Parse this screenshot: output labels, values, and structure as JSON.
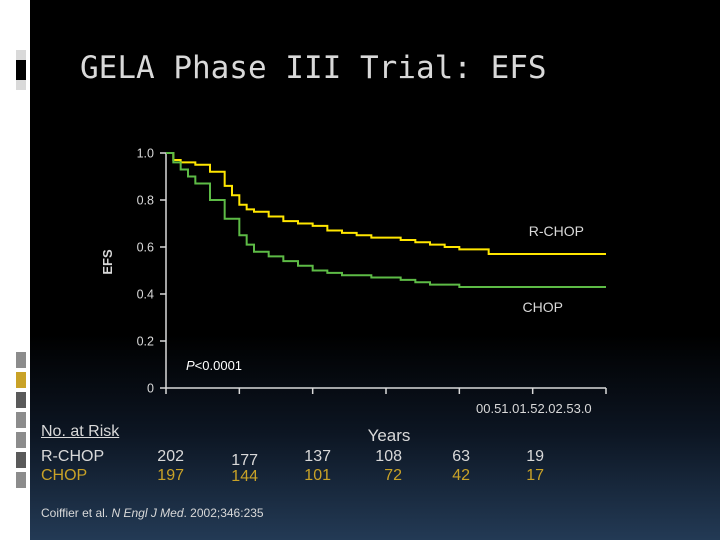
{
  "slide": {
    "title": "GELA Phase III Trial: EFS",
    "citation_prefix": "Coiffier et al. ",
    "citation_journal": "N Engl J Med",
    "citation_suffix": ". 2002;346:235"
  },
  "colors": {
    "rchop": "#ffe600",
    "chop": "#5dbb46",
    "text": "#d9d9d9",
    "background": "#000000"
  },
  "risk_table": {
    "header": "No. at Risk",
    "rows": [
      {
        "label": "R-CHOP",
        "values": [
          "202",
          "177",
          "137",
          "108",
          "63",
          "19"
        ]
      },
      {
        "label": "CHOP",
        "values": [
          "197",
          "144",
          "101",
          "72",
          "42",
          "17"
        ]
      }
    ]
  },
  "chart_data": {
    "type": "line",
    "ylabel": "EFS",
    "xlabel": "Years",
    "ylim": [
      0,
      1.0
    ],
    "xlim": [
      0,
      3.0
    ],
    "y_ticks": [
      "0",
      "0.2",
      "0.4",
      "0.6",
      "0.8",
      "1.0"
    ],
    "x_tick_labels_text": "00.51.01.52.02.53.0",
    "annotation_italic": "P",
    "annotation_rest": "<0.0001",
    "series": [
      {
        "name": "R-CHOP",
        "color": "#ffe600",
        "x": [
          0,
          0.05,
          0.1,
          0.2,
          0.3,
          0.4,
          0.45,
          0.5,
          0.55,
          0.6,
          0.7,
          0.8,
          0.9,
          1.0,
          1.1,
          1.2,
          1.3,
          1.4,
          1.5,
          1.6,
          1.7,
          1.8,
          1.9,
          2.0,
          2.2,
          2.4,
          2.6,
          2.8,
          3.0
        ],
        "y": [
          1.0,
          0.97,
          0.96,
          0.95,
          0.92,
          0.86,
          0.82,
          0.78,
          0.76,
          0.75,
          0.73,
          0.71,
          0.7,
          0.69,
          0.67,
          0.66,
          0.65,
          0.64,
          0.64,
          0.63,
          0.62,
          0.61,
          0.6,
          0.59,
          0.57,
          0.57,
          0.57,
          0.57,
          0.57
        ]
      },
      {
        "name": "CHOP",
        "color": "#5dbb46",
        "x": [
          0,
          0.05,
          0.1,
          0.15,
          0.2,
          0.3,
          0.4,
          0.5,
          0.55,
          0.6,
          0.7,
          0.8,
          0.9,
          1.0,
          1.1,
          1.2,
          1.3,
          1.4,
          1.5,
          1.6,
          1.7,
          1.8,
          2.0,
          2.2,
          2.4,
          2.6,
          2.8,
          3.0
        ],
        "y": [
          1.0,
          0.96,
          0.93,
          0.9,
          0.87,
          0.8,
          0.72,
          0.65,
          0.61,
          0.58,
          0.56,
          0.54,
          0.52,
          0.5,
          0.49,
          0.48,
          0.48,
          0.47,
          0.47,
          0.46,
          0.45,
          0.44,
          0.43,
          0.43,
          0.43,
          0.43,
          0.43,
          0.43
        ]
      }
    ]
  }
}
